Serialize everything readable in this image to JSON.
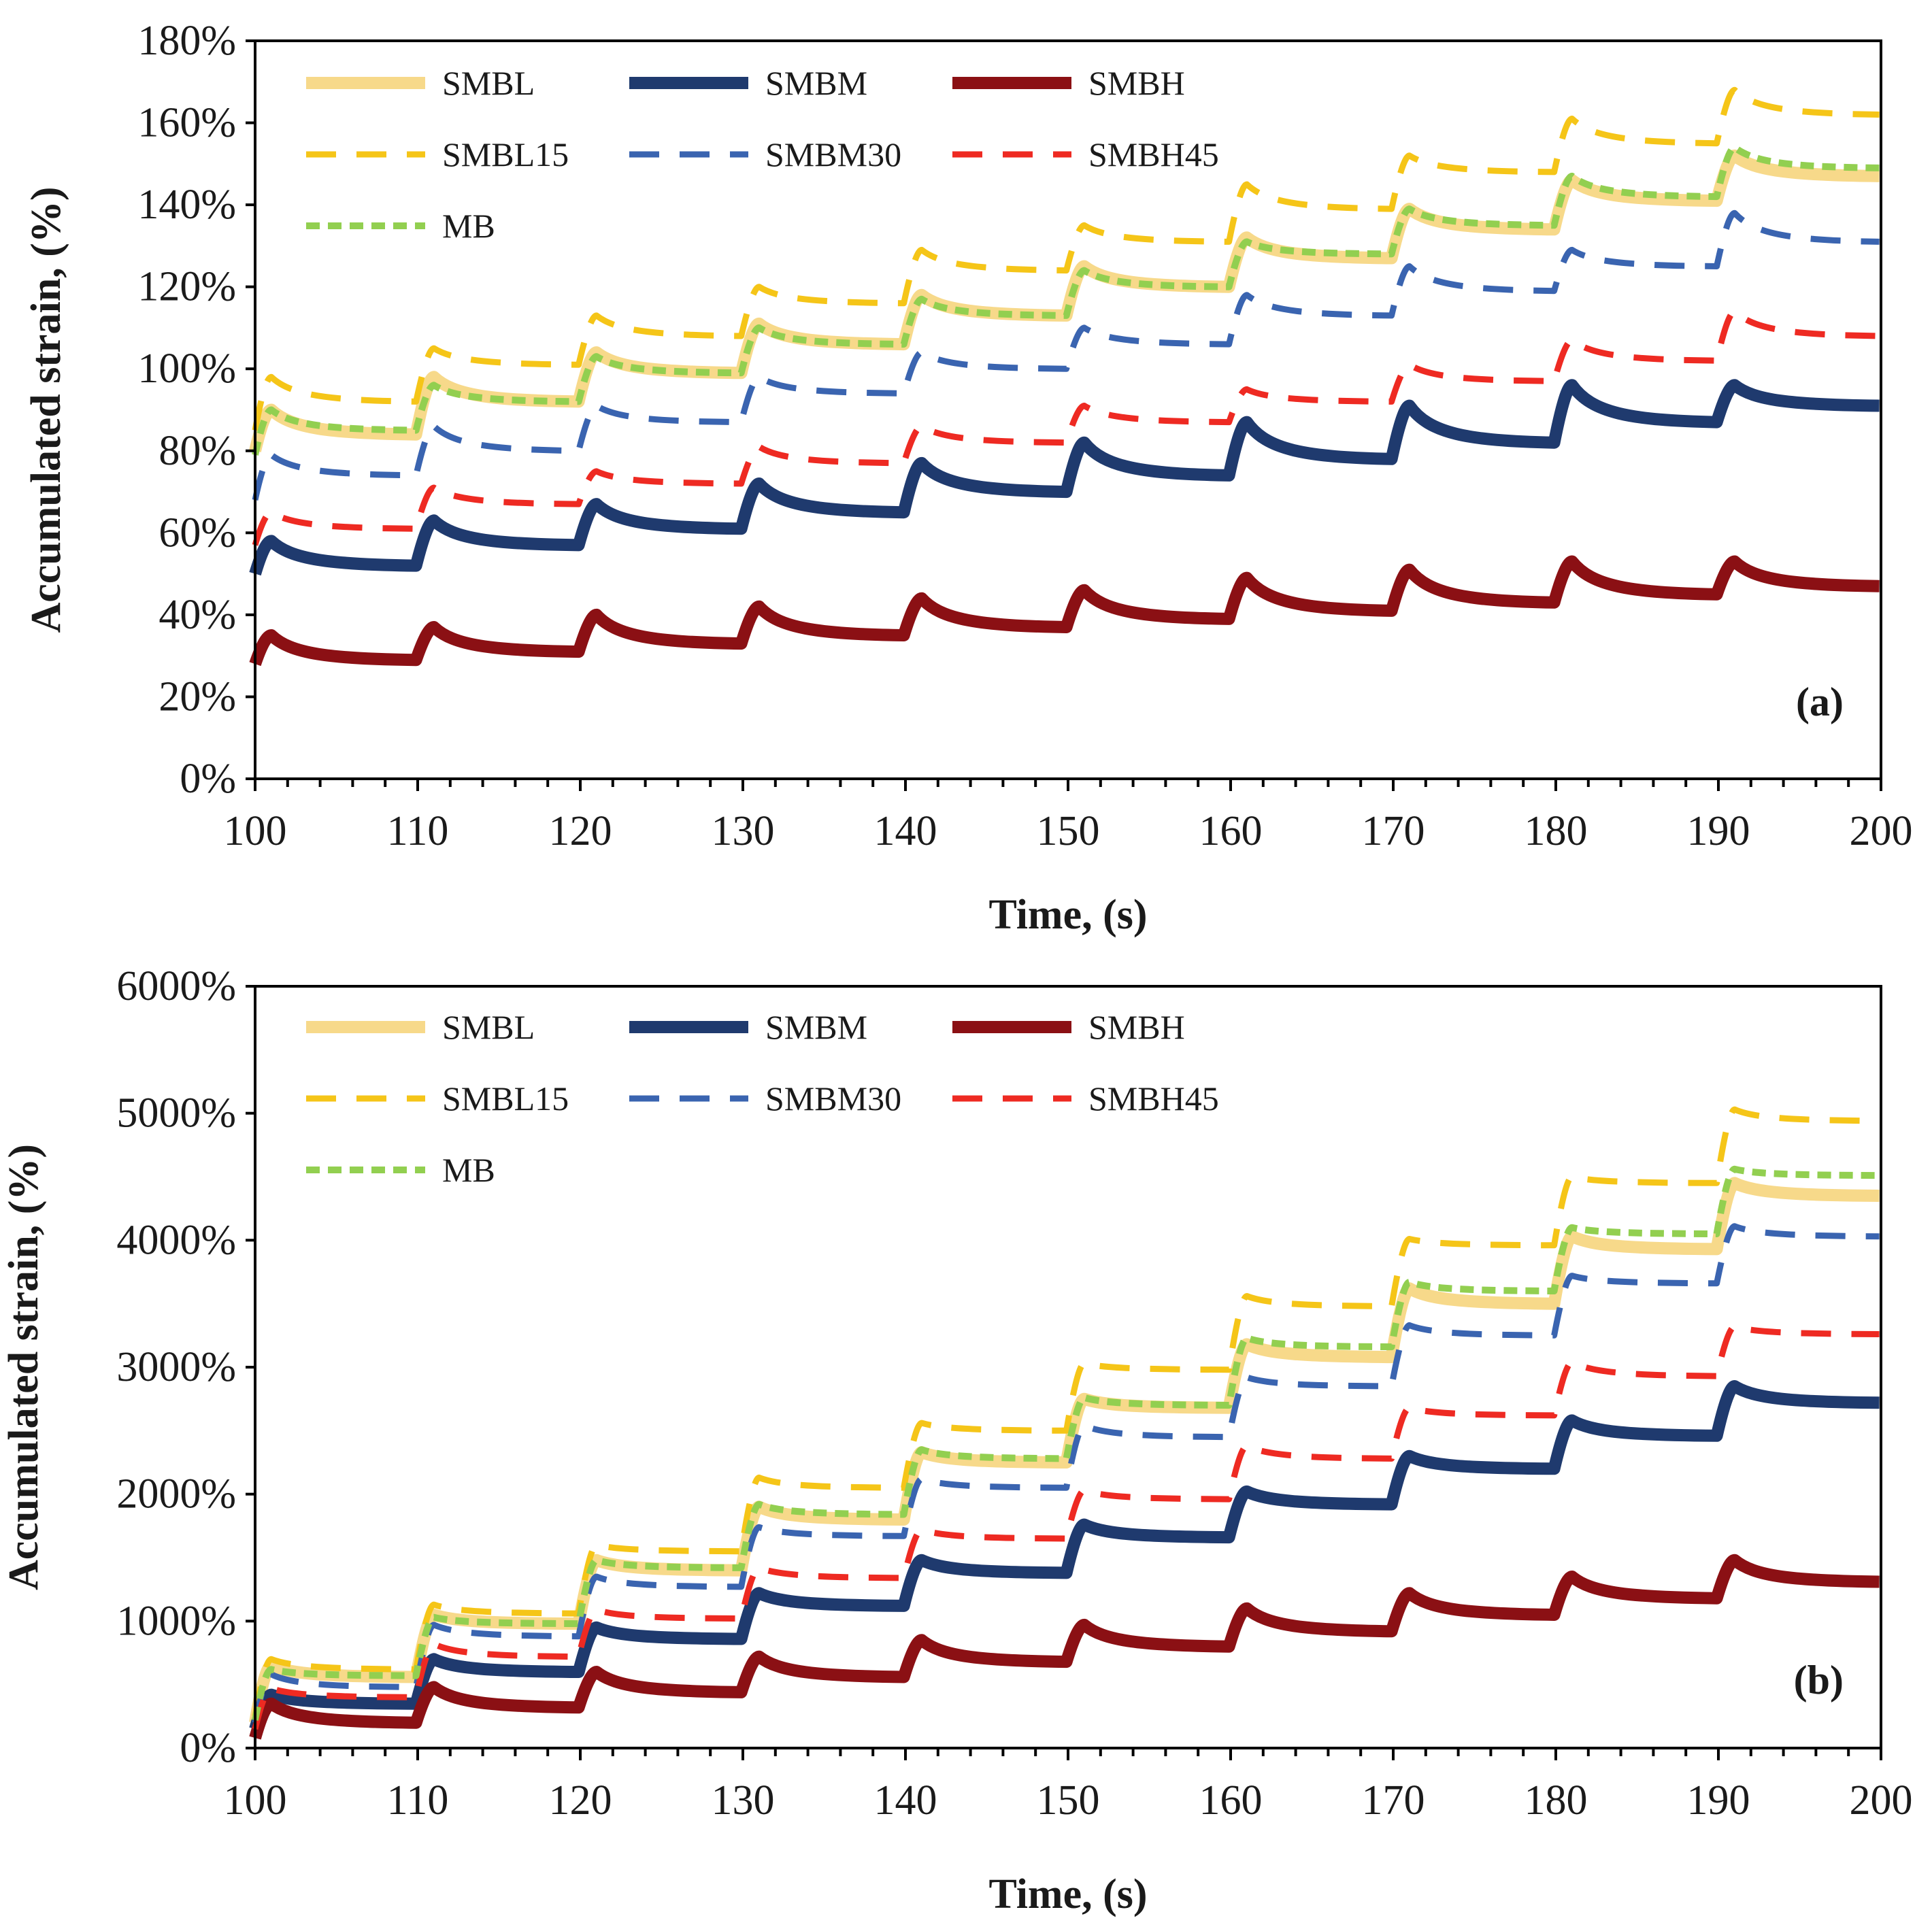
{
  "chart_data": [
    {
      "type": "line",
      "panel_label": "(a)",
      "xlabel": "Time, (s)",
      "ylabel": "Accumulated strain, (%)",
      "xlim": [
        100,
        200
      ],
      "ylim": [
        0,
        180
      ],
      "xticks": [
        "100",
        "110",
        "120",
        "130",
        "140",
        "150",
        "160",
        "170",
        "180",
        "190",
        "200"
      ],
      "yticks": [
        "0%",
        "20%",
        "40%",
        "60%",
        "80%",
        "100%",
        "120%",
        "140%",
        "160%",
        "180%"
      ],
      "x_values": [
        100,
        110,
        120,
        130,
        140,
        150,
        160,
        170,
        180,
        190,
        200
      ],
      "grid": false,
      "legend_position": "top-left",
      "series": [
        {
          "name": "SMBL",
          "color": "#f7d98a",
          "style": "solid",
          "start": 80,
          "segments": [
            [
              90,
              84
            ],
            [
              98,
              92
            ],
            [
              104,
              99
            ],
            [
              111,
              106
            ],
            [
              118,
              113
            ],
            [
              125,
              120
            ],
            [
              132,
              127
            ],
            [
              139,
              134
            ],
            [
              146,
              141
            ],
            [
              152,
              147
            ]
          ]
        },
        {
          "name": "SMBM",
          "color": "#1f3a6e",
          "style": "solid",
          "start": 50,
          "segments": [
            [
              58,
              52
            ],
            [
              63,
              57
            ],
            [
              67,
              61
            ],
            [
              72,
              65
            ],
            [
              77,
              70
            ],
            [
              82,
              74
            ],
            [
              87,
              78
            ],
            [
              91,
              82
            ],
            [
              96,
              87
            ],
            [
              96,
              91
            ]
          ]
        },
        {
          "name": "SMBH",
          "color": "#8b1014",
          "style": "solid",
          "start": 28,
          "segments": [
            [
              35,
              29
            ],
            [
              37,
              31
            ],
            [
              40,
              33
            ],
            [
              42,
              35
            ],
            [
              44,
              37
            ],
            [
              46,
              39
            ],
            [
              49,
              41
            ],
            [
              51,
              43
            ],
            [
              53,
              45
            ],
            [
              53,
              47
            ]
          ]
        },
        {
          "name": "SMBL15",
          "color": "#f5c518",
          "style": "dash",
          "start": 85,
          "segments": [
            [
              98,
              92
            ],
            [
              105,
              101
            ],
            [
              113,
              108
            ],
            [
              120,
              116
            ],
            [
              129,
              124
            ],
            [
              135,
              131
            ],
            [
              145,
              139
            ],
            [
              152,
              148
            ],
            [
              161,
              155
            ],
            [
              168,
              162
            ]
          ]
        },
        {
          "name": "SMBM30",
          "color": "#3a64b0",
          "style": "dash",
          "start": 68,
          "segments": [
            [
              79,
              74
            ],
            [
              86,
              80
            ],
            [
              91,
              87
            ],
            [
              98,
              94
            ],
            [
              104,
              100
            ],
            [
              110,
              106
            ],
            [
              118,
              113
            ],
            [
              125,
              119
            ],
            [
              129,
              125
            ],
            [
              138,
              131
            ]
          ]
        },
        {
          "name": "SMBH45",
          "color": "#ee2a22",
          "style": "dash",
          "start": 57,
          "segments": [
            [
              65,
              61
            ],
            [
              71,
              67
            ],
            [
              75,
              72
            ],
            [
              81,
              77
            ],
            [
              86,
              82
            ],
            [
              91,
              87
            ],
            [
              95,
              92
            ],
            [
              101,
              97
            ],
            [
              107,
              102
            ],
            [
              114,
              108
            ]
          ]
        },
        {
          "name": "MB",
          "color": "#92cf50",
          "style": "dot",
          "start": 79,
          "segments": [
            [
              90,
              85
            ],
            [
              96,
              92
            ],
            [
              103,
              99
            ],
            [
              110,
              106
            ],
            [
              117,
              113
            ],
            [
              124,
              120
            ],
            [
              131,
              128
            ],
            [
              139,
              135
            ],
            [
              147,
              142
            ],
            [
              154,
              149
            ]
          ]
        }
      ]
    },
    {
      "type": "line",
      "panel_label": "(b)",
      "xlabel": "Time, (s)",
      "ylabel": "Accumulated strain, (%)",
      "xlim": [
        100,
        200
      ],
      "ylim": [
        0,
        6000
      ],
      "xticks": [
        "100",
        "110",
        "120",
        "130",
        "140",
        "150",
        "160",
        "170",
        "180",
        "190",
        "200"
      ],
      "yticks": [
        "0%",
        "1000%",
        "2000%",
        "3000%",
        "4000%",
        "5000%",
        "6000%"
      ],
      "x_values": [
        100,
        110,
        120,
        130,
        140,
        150,
        160,
        170,
        180,
        190,
        200
      ],
      "grid": false,
      "legend_position": "top-left",
      "series": [
        {
          "name": "SMBL",
          "color": "#f7d98a",
          "style": "solid",
          "start": 200,
          "segments": [
            [
              650,
              560
            ],
            [
              1050,
              980
            ],
            [
              1480,
              1400
            ],
            [
              1900,
              1800
            ],
            [
              2330,
              2250
            ],
            [
              2750,
              2680
            ],
            [
              3180,
              3080
            ],
            [
              3620,
              3500
            ],
            [
              4030,
              3930
            ],
            [
              4450,
              4350
            ]
          ]
        },
        {
          "name": "SMBM",
          "color": "#1f3a6e",
          "style": "solid",
          "start": 150,
          "segments": [
            [
              420,
              350
            ],
            [
              700,
              600
            ],
            [
              950,
              860
            ],
            [
              1220,
              1120
            ],
            [
              1480,
              1380
            ],
            [
              1760,
              1660
            ],
            [
              2020,
              1920
            ],
            [
              2300,
              2200
            ],
            [
              2580,
              2460
            ],
            [
              2850,
              2720
            ]
          ]
        },
        {
          "name": "SMBH",
          "color": "#8b1014",
          "style": "solid",
          "start": 80,
          "segments": [
            [
              350,
              200
            ],
            [
              480,
              320
            ],
            [
              600,
              440
            ],
            [
              720,
              560
            ],
            [
              850,
              680
            ],
            [
              970,
              800
            ],
            [
              1100,
              920
            ],
            [
              1220,
              1050
            ],
            [
              1350,
              1180
            ],
            [
              1480,
              1310
            ]
          ]
        },
        {
          "name": "SMBL15",
          "color": "#f5c518",
          "style": "dash",
          "start": 250,
          "segments": [
            [
              700,
              620
            ],
            [
              1130,
              1060
            ],
            [
              1600,
              1550
            ],
            [
              2130,
              2050
            ],
            [
              2560,
              2500
            ],
            [
              3030,
              2980
            ],
            [
              3560,
              3480
            ],
            [
              4010,
              3960
            ],
            [
              4500,
              4450
            ],
            [
              5030,
              4940
            ]
          ]
        },
        {
          "name": "SMBM30",
          "color": "#3a64b0",
          "style": "dash",
          "start": 200,
          "segments": [
            [
              580,
              480
            ],
            [
              970,
              880
            ],
            [
              1350,
              1270
            ],
            [
              1740,
              1670
            ],
            [
              2120,
              2050
            ],
            [
              2540,
              2450
            ],
            [
              2920,
              2850
            ],
            [
              3330,
              3250
            ],
            [
              3720,
              3660
            ],
            [
              4110,
              4030
            ]
          ]
        },
        {
          "name": "SMBH45",
          "color": "#ee2a22",
          "style": "dash",
          "start": 150,
          "segments": [
            [
              470,
              400
            ],
            [
              820,
              720
            ],
            [
              1090,
              1020
            ],
            [
              1420,
              1340
            ],
            [
              1720,
              1650
            ],
            [
              2030,
              1960
            ],
            [
              2380,
              2280
            ],
            [
              2680,
              2620
            ],
            [
              3040,
              2930
            ],
            [
              3320,
              3260
            ]
          ]
        },
        {
          "name": "MB",
          "color": "#92cf50",
          "style": "dot",
          "start": 220,
          "segments": [
            [
              620,
              570
            ],
            [
              1030,
              980
            ],
            [
              1480,
              1420
            ],
            [
              1920,
              1840
            ],
            [
              2350,
              2280
            ],
            [
              2760,
              2700
            ],
            [
              3230,
              3160
            ],
            [
              3670,
              3600
            ],
            [
              4100,
              4050
            ],
            [
              4560,
              4510
            ]
          ]
        }
      ]
    }
  ]
}
